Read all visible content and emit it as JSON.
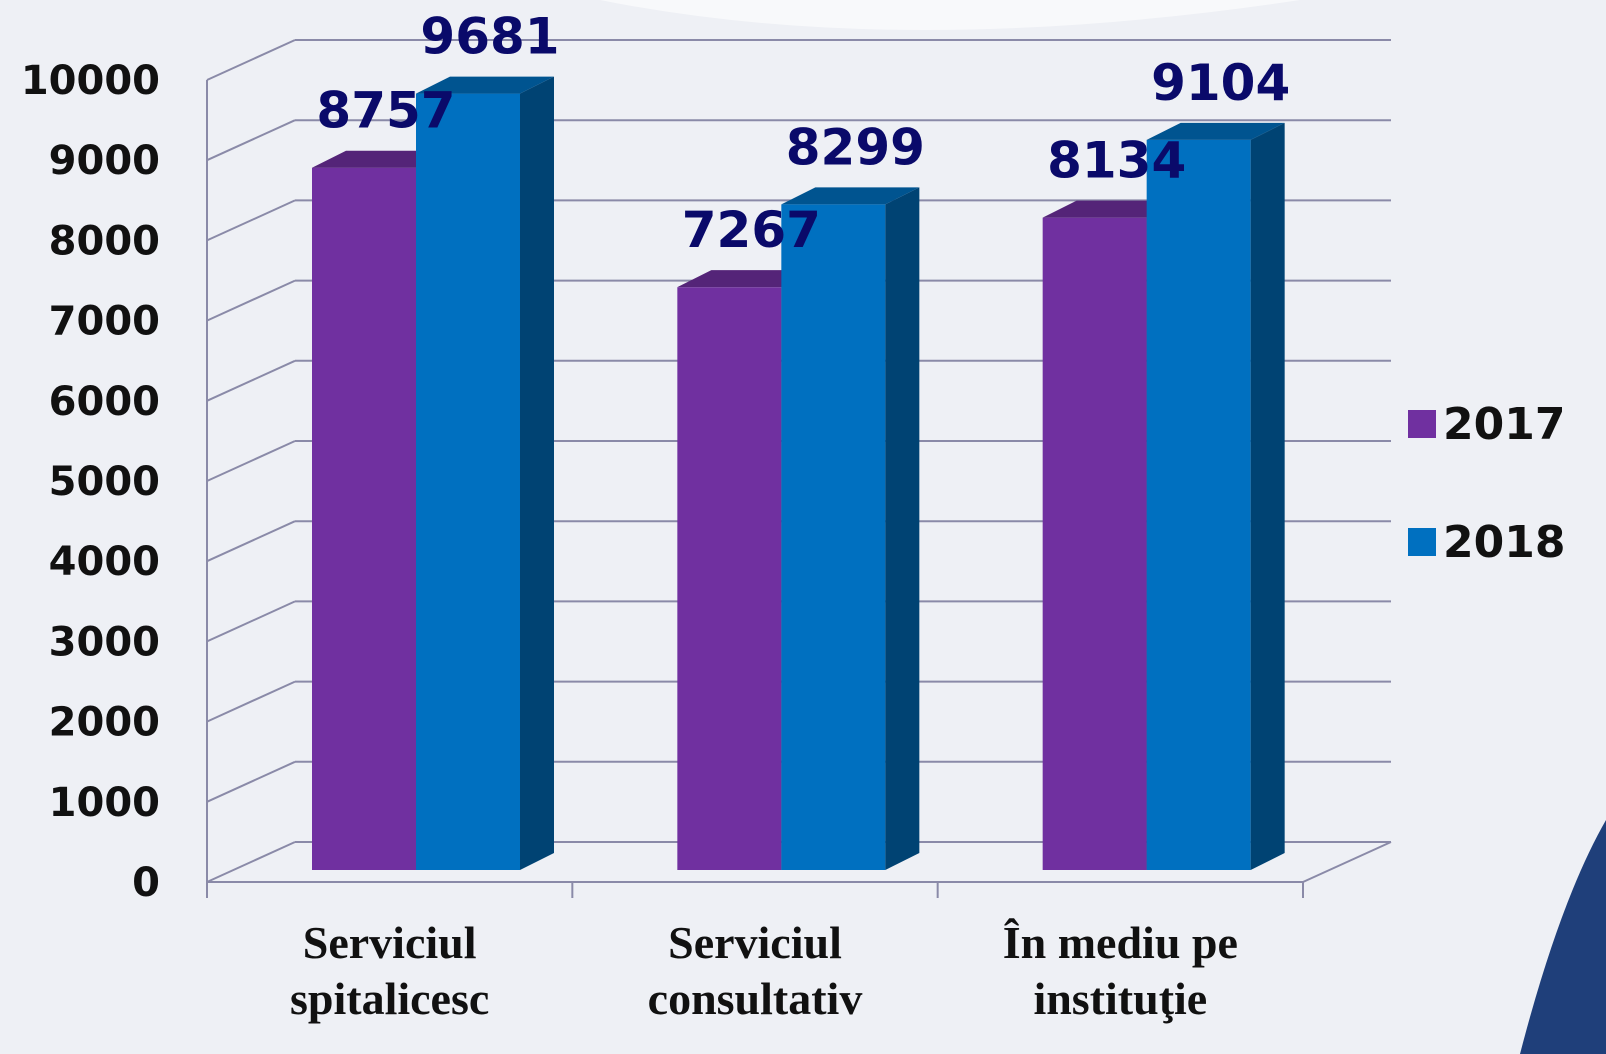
{
  "chart_data": {
    "type": "bar3d",
    "categories": [
      "Serviciul spitalicesc",
      "Serviciul consultativ",
      "În mediu pe instituţie"
    ],
    "series": [
      {
        "name": "2017",
        "color": "#7030a0",
        "values": [
          8757,
          7267,
          8134
        ]
      },
      {
        "name": "2018",
        "color": "#0070c0",
        "values": [
          9681,
          8299,
          9104
        ]
      }
    ],
    "ylim": [
      0,
      10000
    ],
    "yticks": [
      0,
      1000,
      2000,
      3000,
      4000,
      5000,
      6000,
      7000,
      8000,
      9000,
      10000
    ],
    "grid": true,
    "legend": "right"
  }
}
